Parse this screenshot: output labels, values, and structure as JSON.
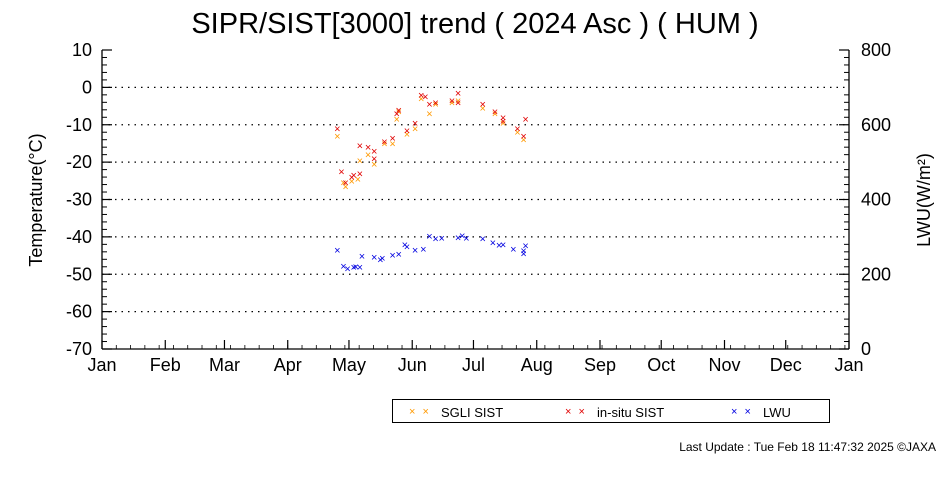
{
  "chart_data": {
    "type": "scatter",
    "title": "SIPR/SIST[3000] trend ( 2024 Asc ) ( HUM )",
    "xlabel": "",
    "ylabel": "Temperature(°C)",
    "y2label": "LWU(W/m²)",
    "x_ticks": [
      "Jan",
      "Feb",
      "Mar",
      "Apr",
      "May",
      "Jun",
      "Jul",
      "Aug",
      "Sep",
      "Oct",
      "Nov",
      "Dec",
      "Jan"
    ],
    "x_range_days": [
      0,
      365
    ],
    "ylim": [
      -70,
      10
    ],
    "y_ticks": [
      "10",
      "0",
      "-10",
      "-20",
      "-30",
      "-40",
      "-50",
      "-60",
      "-70"
    ],
    "y2lim": [
      0,
      800
    ],
    "y2_ticks": [
      "800",
      "600",
      "400",
      "200",
      "0"
    ],
    "grid": "dotted horizontal",
    "legend_position": "bottom-right",
    "series": [
      {
        "name": "SGLI SIST",
        "color": "#ff9900",
        "axis": "left",
        "points": [
          {
            "x": "2024-04-25",
            "y": -13.0
          },
          {
            "x": "2024-04-28",
            "y": -25.5
          },
          {
            "x": "2024-04-29",
            "y": -26.5
          },
          {
            "x": "2024-05-02",
            "y": -25.0
          },
          {
            "x": "2024-05-05",
            "y": -24.5
          },
          {
            "x": "2024-05-06",
            "y": -19.5
          },
          {
            "x": "2024-05-10",
            "y": -18.0
          },
          {
            "x": "2024-05-13",
            "y": -20.5
          },
          {
            "x": "2024-05-18",
            "y": -15.0
          },
          {
            "x": "2024-05-22",
            "y": -15.0
          },
          {
            "x": "2024-05-24",
            "y": -8.5
          },
          {
            "x": "2024-05-25",
            "y": -6.5
          },
          {
            "x": "2024-05-29",
            "y": -12.5
          },
          {
            "x": "2024-06-02",
            "y": -11.0
          },
          {
            "x": "2024-06-05",
            "y": -3.0
          },
          {
            "x": "2024-06-09",
            "y": -7.0
          },
          {
            "x": "2024-06-12",
            "y": -4.5
          },
          {
            "x": "2024-06-20",
            "y": -4.0
          },
          {
            "x": "2024-06-23",
            "y": -3.5
          },
          {
            "x": "2024-07-05",
            "y": -5.5
          },
          {
            "x": "2024-07-11",
            "y": -7.0
          },
          {
            "x": "2024-07-15",
            "y": -9.5
          },
          {
            "x": "2024-07-22",
            "y": -12.0
          },
          {
            "x": "2024-07-25",
            "y": -14.0
          }
        ]
      },
      {
        "name": "in-situ SIST",
        "color": "#e00000",
        "axis": "left",
        "points": [
          {
            "x": "2024-04-25",
            "y": -11.0
          },
          {
            "x": "2024-04-27",
            "y": -22.5
          },
          {
            "x": "2024-04-29",
            "y": -25.5
          },
          {
            "x": "2024-05-02",
            "y": -24.0
          },
          {
            "x": "2024-05-03",
            "y": -23.5
          },
          {
            "x": "2024-05-06",
            "y": -23.0
          },
          {
            "x": "2024-05-06",
            "y": -15.5
          },
          {
            "x": "2024-05-10",
            "y": -16.0
          },
          {
            "x": "2024-05-13",
            "y": -17.0
          },
          {
            "x": "2024-05-13",
            "y": -19.0
          },
          {
            "x": "2024-05-18",
            "y": -14.5
          },
          {
            "x": "2024-05-22",
            "y": -13.5
          },
          {
            "x": "2024-05-24",
            "y": -7.0
          },
          {
            "x": "2024-05-25",
            "y": -6.0
          },
          {
            "x": "2024-05-29",
            "y": -11.5
          },
          {
            "x": "2024-06-02",
            "y": -9.5
          },
          {
            "x": "2024-06-05",
            "y": -2.0
          },
          {
            "x": "2024-06-07",
            "y": -2.5
          },
          {
            "x": "2024-06-09",
            "y": -4.5
          },
          {
            "x": "2024-06-12",
            "y": -4.0
          },
          {
            "x": "2024-06-20",
            "y": -3.5
          },
          {
            "x": "2024-06-23",
            "y": -4.0
          },
          {
            "x": "2024-06-23",
            "y": -1.5
          },
          {
            "x": "2024-07-05",
            "y": -4.5
          },
          {
            "x": "2024-07-11",
            "y": -6.5
          },
          {
            "x": "2024-07-15",
            "y": -8.0
          },
          {
            "x": "2024-07-15",
            "y": -9.0
          },
          {
            "x": "2024-07-22",
            "y": -11.0
          },
          {
            "x": "2024-07-25",
            "y": -13.0
          },
          {
            "x": "2024-07-26",
            "y": -8.5
          }
        ]
      },
      {
        "name": "LWU",
        "color": "#0000e0",
        "axis": "right",
        "points": [
          {
            "x": "2024-04-25",
            "y": 265
          },
          {
            "x": "2024-04-28",
            "y": 222
          },
          {
            "x": "2024-04-30",
            "y": 215
          },
          {
            "x": "2024-05-03",
            "y": 219
          },
          {
            "x": "2024-05-04",
            "y": 221
          },
          {
            "x": "2024-05-06",
            "y": 219
          },
          {
            "x": "2024-05-07",
            "y": 249
          },
          {
            "x": "2024-05-13",
            "y": 246
          },
          {
            "x": "2024-05-16",
            "y": 240
          },
          {
            "x": "2024-05-17",
            "y": 243
          },
          {
            "x": "2024-05-22",
            "y": 252
          },
          {
            "x": "2024-05-25",
            "y": 254
          },
          {
            "x": "2024-05-28",
            "y": 279
          },
          {
            "x": "2024-05-29",
            "y": 274
          },
          {
            "x": "2024-06-02",
            "y": 265
          },
          {
            "x": "2024-06-06",
            "y": 268
          },
          {
            "x": "2024-06-09",
            "y": 302
          },
          {
            "x": "2024-06-12",
            "y": 295
          },
          {
            "x": "2024-06-15",
            "y": 297
          },
          {
            "x": "2024-06-23",
            "y": 298
          },
          {
            "x": "2024-06-25",
            "y": 304
          },
          {
            "x": "2024-06-27",
            "y": 297
          },
          {
            "x": "2024-07-05",
            "y": 295
          },
          {
            "x": "2024-07-10",
            "y": 285
          },
          {
            "x": "2024-07-13",
            "y": 278
          },
          {
            "x": "2024-07-15",
            "y": 280
          },
          {
            "x": "2024-07-20",
            "y": 268
          },
          {
            "x": "2024-07-25",
            "y": 263
          },
          {
            "x": "2024-07-25",
            "y": 255
          },
          {
            "x": "2024-07-26",
            "y": 277
          }
        ]
      }
    ]
  },
  "legend": {
    "items": [
      {
        "name": "SGLI SIST",
        "mark": "× ×"
      },
      {
        "name": "in-situ SIST",
        "mark": "× ×"
      },
      {
        "name": "LWU",
        "mark": "× ×"
      }
    ]
  },
  "footer": {
    "last_update": "Last Update : Tue Feb 18 11:47:32 2025  ©JAXA"
  }
}
